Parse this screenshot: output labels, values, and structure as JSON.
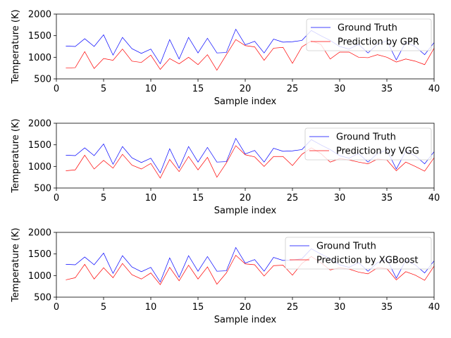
{
  "chart_data": [
    {
      "type": "line",
      "xlabel": "Sample index",
      "ylabel": "Temperature (K)",
      "xlim": [
        0,
        40
      ],
      "ylim": [
        500,
        2000
      ],
      "xticks": [
        0,
        5,
        10,
        15,
        20,
        25,
        30,
        35,
        40
      ],
      "yticks": [
        500,
        1000,
        1500,
        2000
      ],
      "legend_position": "top-right",
      "grid": false,
      "x": [
        1,
        2,
        3,
        4,
        5,
        6,
        7,
        8,
        9,
        10,
        11,
        12,
        13,
        14,
        15,
        16,
        17,
        18,
        19,
        20,
        21,
        22,
        23,
        24,
        25,
        26,
        27,
        28,
        29,
        30,
        31,
        32,
        33,
        34,
        35,
        36,
        37,
        38,
        39,
        40
      ],
      "series": [
        {
          "name": "Ground Truth",
          "color": "#0000ff",
          "values": [
            1260,
            1250,
            1430,
            1250,
            1520,
            1050,
            1460,
            1200,
            1090,
            1190,
            850,
            1410,
            960,
            1460,
            1100,
            1440,
            1100,
            1110,
            1650,
            1290,
            1370,
            1100,
            1420,
            1350,
            1360,
            1390,
            1620,
            1500,
            1390,
            1250,
            1190,
            1300,
            1100,
            1300,
            1380,
            940,
            1350,
            1250,
            1060,
            1340
          ]
        },
        {
          "name": "Prediction by GPR",
          "color": "#ff0000",
          "values": [
            750,
            760,
            1130,
            740,
            970,
            930,
            1190,
            910,
            880,
            1050,
            720,
            970,
            850,
            1000,
            830,
            1060,
            700,
            1060,
            1410,
            1270,
            1240,
            930,
            1210,
            1230,
            860,
            1240,
            1380,
            1300,
            960,
            1120,
            1120,
            1000,
            990,
            1060,
            1000,
            890,
            960,
            910,
            830,
            1210
          ]
        }
      ]
    },
    {
      "type": "line",
      "xlabel": "Sample index",
      "ylabel": "Temperature (K)",
      "xlim": [
        0,
        40
      ],
      "ylim": [
        500,
        2000
      ],
      "xticks": [
        0,
        5,
        10,
        15,
        20,
        25,
        30,
        35,
        40
      ],
      "yticks": [
        500,
        1000,
        1500,
        2000
      ],
      "legend_position": "top-right",
      "grid": false,
      "x": [
        1,
        2,
        3,
        4,
        5,
        6,
        7,
        8,
        9,
        10,
        11,
        12,
        13,
        14,
        15,
        16,
        17,
        18,
        19,
        20,
        21,
        22,
        23,
        24,
        25,
        26,
        27,
        28,
        29,
        30,
        31,
        32,
        33,
        34,
        35,
        36,
        37,
        38,
        39,
        40
      ],
      "series": [
        {
          "name": "Ground Truth",
          "color": "#0000ff",
          "values": [
            1260,
            1250,
            1430,
            1250,
            1520,
            1050,
            1460,
            1200,
            1090,
            1190,
            850,
            1410,
            960,
            1460,
            1100,
            1440,
            1100,
            1110,
            1650,
            1290,
            1370,
            1100,
            1420,
            1350,
            1360,
            1390,
            1620,
            1500,
            1390,
            1250,
            1190,
            1300,
            1100,
            1300,
            1380,
            940,
            1350,
            1250,
            1060,
            1340
          ]
        },
        {
          "name": "Prediction by VGG",
          "color": "#ff0000",
          "values": [
            900,
            920,
            1260,
            940,
            1140,
            960,
            1280,
            1030,
            940,
            1070,
            730,
            1160,
            880,
            1230,
            920,
            1210,
            750,
            1080,
            1480,
            1270,
            1220,
            1000,
            1230,
            1230,
            1020,
            1280,
            1430,
            1300,
            1100,
            1180,
            1150,
            1100,
            1060,
            1170,
            1150,
            900,
            1100,
            1000,
            890,
            1200
          ]
        }
      ]
    },
    {
      "type": "line",
      "xlabel": "Sample index",
      "ylabel": "Temperature (K)",
      "xlim": [
        0,
        40
      ],
      "ylim": [
        500,
        2000
      ],
      "xticks": [
        0,
        5,
        10,
        15,
        20,
        25,
        30,
        35,
        40
      ],
      "yticks": [
        500,
        1000,
        1500,
        2000
      ],
      "legend_position": "top-right",
      "grid": false,
      "x": [
        1,
        2,
        3,
        4,
        5,
        6,
        7,
        8,
        9,
        10,
        11,
        12,
        13,
        14,
        15,
        16,
        17,
        18,
        19,
        20,
        21,
        22,
        23,
        24,
        25,
        26,
        27,
        28,
        29,
        30,
        31,
        32,
        33,
        34,
        35,
        36,
        37,
        38,
        39,
        40
      ],
      "series": [
        {
          "name": "Ground Truth",
          "color": "#0000ff",
          "values": [
            1260,
            1250,
            1430,
            1250,
            1520,
            1050,
            1460,
            1200,
            1090,
            1190,
            850,
            1410,
            960,
            1460,
            1100,
            1440,
            1100,
            1110,
            1650,
            1290,
            1370,
            1100,
            1420,
            1350,
            1360,
            1390,
            1620,
            1500,
            1390,
            1250,
            1190,
            1300,
            1100,
            1300,
            1380,
            940,
            1350,
            1250,
            1060,
            1340
          ]
        },
        {
          "name": "Prediction by XGBoost",
          "color": "#ff0000",
          "values": [
            900,
            950,
            1260,
            920,
            1180,
            950,
            1280,
            1020,
            920,
            1060,
            790,
            1190,
            880,
            1240,
            920,
            1200,
            800,
            1060,
            1470,
            1270,
            1250,
            990,
            1230,
            1240,
            1010,
            1280,
            1440,
            1300,
            1130,
            1180,
            1150,
            1080,
            1040,
            1180,
            1160,
            900,
            1090,
            1010,
            890,
            1220
          ]
        }
      ]
    }
  ]
}
